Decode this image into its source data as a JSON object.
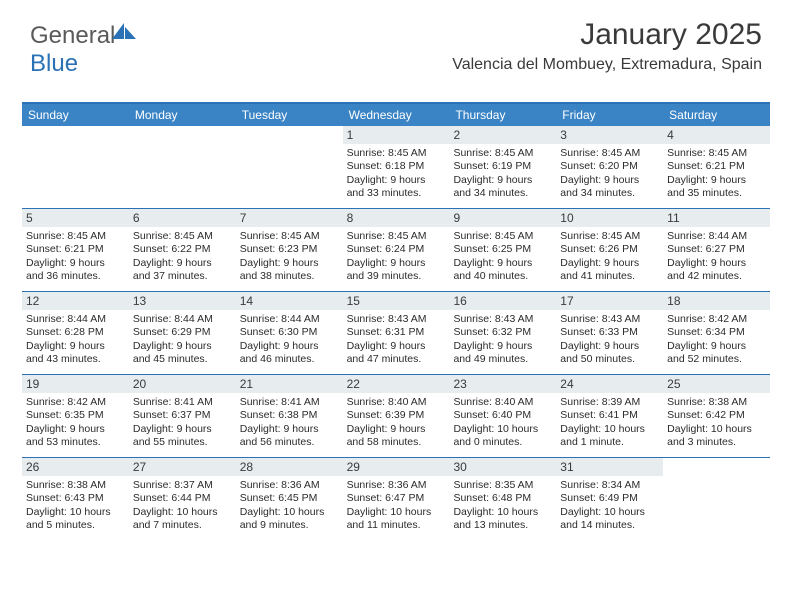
{
  "brand": {
    "word1": "General",
    "word2": "Blue"
  },
  "header": {
    "month": "January 2025",
    "location": "Valencia del Mombuey, Extremadura, Spain"
  },
  "colors": {
    "accent": "#2a72b5",
    "header_bar": "#3a84c6",
    "daynum_bg": "#e7ecef",
    "text": "#2b2b2b"
  },
  "daynames": [
    "Sunday",
    "Monday",
    "Tuesday",
    "Wednesday",
    "Thursday",
    "Friday",
    "Saturday"
  ],
  "grid": {
    "first_weekday": 3,
    "days_in_month": 31
  },
  "days": {
    "1": {
      "sunrise": "8:45 AM",
      "sunset": "6:18 PM",
      "daylight": "9 hours and 33 minutes."
    },
    "2": {
      "sunrise": "8:45 AM",
      "sunset": "6:19 PM",
      "daylight": "9 hours and 34 minutes."
    },
    "3": {
      "sunrise": "8:45 AM",
      "sunset": "6:20 PM",
      "daylight": "9 hours and 34 minutes."
    },
    "4": {
      "sunrise": "8:45 AM",
      "sunset": "6:21 PM",
      "daylight": "9 hours and 35 minutes."
    },
    "5": {
      "sunrise": "8:45 AM",
      "sunset": "6:21 PM",
      "daylight": "9 hours and 36 minutes."
    },
    "6": {
      "sunrise": "8:45 AM",
      "sunset": "6:22 PM",
      "daylight": "9 hours and 37 minutes."
    },
    "7": {
      "sunrise": "8:45 AM",
      "sunset": "6:23 PM",
      "daylight": "9 hours and 38 minutes."
    },
    "8": {
      "sunrise": "8:45 AM",
      "sunset": "6:24 PM",
      "daylight": "9 hours and 39 minutes."
    },
    "9": {
      "sunrise": "8:45 AM",
      "sunset": "6:25 PM",
      "daylight": "9 hours and 40 minutes."
    },
    "10": {
      "sunrise": "8:45 AM",
      "sunset": "6:26 PM",
      "daylight": "9 hours and 41 minutes."
    },
    "11": {
      "sunrise": "8:44 AM",
      "sunset": "6:27 PM",
      "daylight": "9 hours and 42 minutes."
    },
    "12": {
      "sunrise": "8:44 AM",
      "sunset": "6:28 PM",
      "daylight": "9 hours and 43 minutes."
    },
    "13": {
      "sunrise": "8:44 AM",
      "sunset": "6:29 PM",
      "daylight": "9 hours and 45 minutes."
    },
    "14": {
      "sunrise": "8:44 AM",
      "sunset": "6:30 PM",
      "daylight": "9 hours and 46 minutes."
    },
    "15": {
      "sunrise": "8:43 AM",
      "sunset": "6:31 PM",
      "daylight": "9 hours and 47 minutes."
    },
    "16": {
      "sunrise": "8:43 AM",
      "sunset": "6:32 PM",
      "daylight": "9 hours and 49 minutes."
    },
    "17": {
      "sunrise": "8:43 AM",
      "sunset": "6:33 PM",
      "daylight": "9 hours and 50 minutes."
    },
    "18": {
      "sunrise": "8:42 AM",
      "sunset": "6:34 PM",
      "daylight": "9 hours and 52 minutes."
    },
    "19": {
      "sunrise": "8:42 AM",
      "sunset": "6:35 PM",
      "daylight": "9 hours and 53 minutes."
    },
    "20": {
      "sunrise": "8:41 AM",
      "sunset": "6:37 PM",
      "daylight": "9 hours and 55 minutes."
    },
    "21": {
      "sunrise": "8:41 AM",
      "sunset": "6:38 PM",
      "daylight": "9 hours and 56 minutes."
    },
    "22": {
      "sunrise": "8:40 AM",
      "sunset": "6:39 PM",
      "daylight": "9 hours and 58 minutes."
    },
    "23": {
      "sunrise": "8:40 AM",
      "sunset": "6:40 PM",
      "daylight": "10 hours and 0 minutes."
    },
    "24": {
      "sunrise": "8:39 AM",
      "sunset": "6:41 PM",
      "daylight": "10 hours and 1 minute."
    },
    "25": {
      "sunrise": "8:38 AM",
      "sunset": "6:42 PM",
      "daylight": "10 hours and 3 minutes."
    },
    "26": {
      "sunrise": "8:38 AM",
      "sunset": "6:43 PM",
      "daylight": "10 hours and 5 minutes."
    },
    "27": {
      "sunrise": "8:37 AM",
      "sunset": "6:44 PM",
      "daylight": "10 hours and 7 minutes."
    },
    "28": {
      "sunrise": "8:36 AM",
      "sunset": "6:45 PM",
      "daylight": "10 hours and 9 minutes."
    },
    "29": {
      "sunrise": "8:36 AM",
      "sunset": "6:47 PM",
      "daylight": "10 hours and 11 minutes."
    },
    "30": {
      "sunrise": "8:35 AM",
      "sunset": "6:48 PM",
      "daylight": "10 hours and 13 minutes."
    },
    "31": {
      "sunrise": "8:34 AM",
      "sunset": "6:49 PM",
      "daylight": "10 hours and 14 minutes."
    }
  },
  "labels": {
    "sunrise": "Sunrise:",
    "sunset": "Sunset:",
    "daylight": "Daylight:"
  }
}
